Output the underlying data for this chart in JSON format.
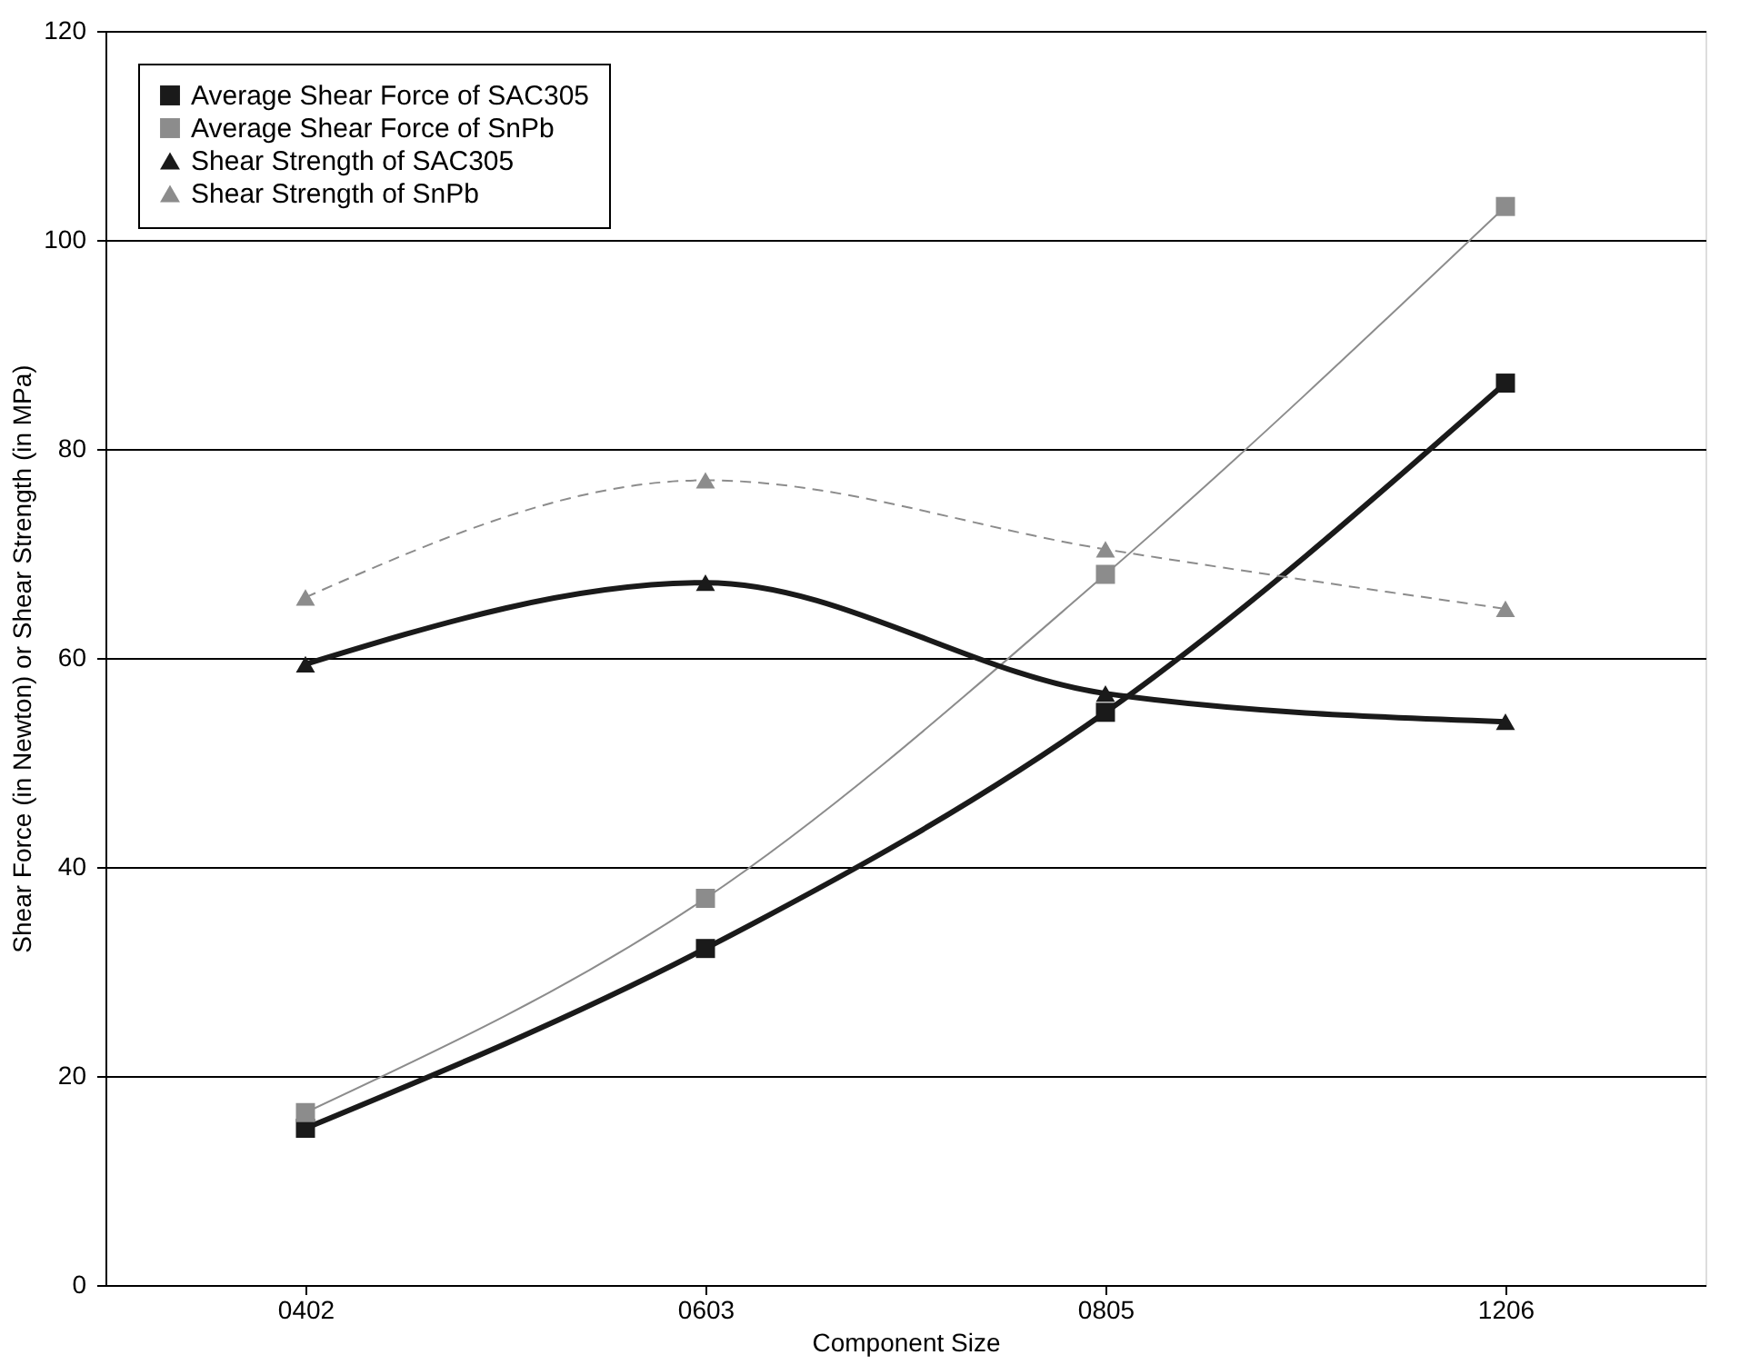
{
  "chart_data": {
    "type": "line",
    "xlabel": "Component Size",
    "ylabel": "Shear Force (in Newton) or Shear Strength (in MPa)",
    "categories": [
      "0402",
      "0603",
      "0805",
      "1206"
    ],
    "series": [
      {
        "name": "Average Shear Force of SAC305",
        "color": "#1a1a1a",
        "values": [
          15.0,
          32.2,
          54.8,
          86.3
        ],
        "marker": "square",
        "line_style": "solid"
      },
      {
        "name": "Average Shear Force of SnPb",
        "color": "#8c8c8c",
        "values": [
          16.5,
          37.0,
          68.0,
          103.2
        ],
        "marker": "square",
        "line_style": "solid"
      },
      {
        "name": "Shear Strength of SAC305",
        "color": "#1a1a1a",
        "values": [
          59.4,
          67.2,
          56.6,
          53.9
        ],
        "marker": "triangle",
        "line_style": "solid"
      },
      {
        "name": "Shear Strength of SnPb",
        "color": "#8c8c8c",
        "values": [
          65.8,
          77.0,
          70.4,
          64.7
        ],
        "marker": "triangle",
        "line_style": "dashed"
      }
    ],
    "ylim": [
      0,
      120
    ],
    "yticks": [
      0,
      20,
      40,
      60,
      80,
      100,
      120
    ],
    "grid": "y",
    "legend": "top left"
  }
}
